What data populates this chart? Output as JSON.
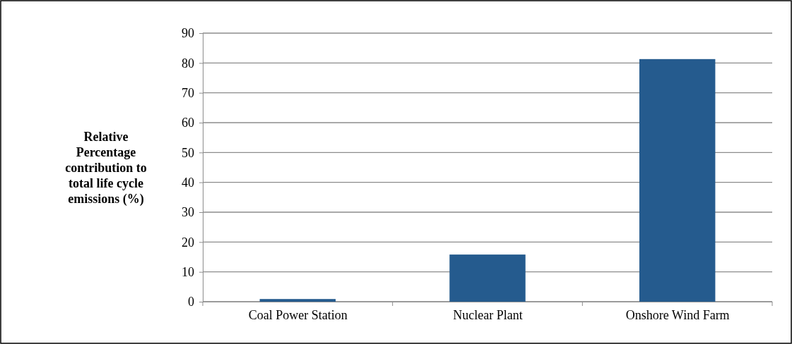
{
  "chart_data": {
    "type": "bar",
    "ylabel": "Relative Percentage contribution to total life cycle emissions (%)",
    "categories": [
      "Coal Power Station",
      "Nuclear Plant",
      "Onshore Wind Farm"
    ],
    "values": [
      0.9,
      15.8,
      81.3
    ],
    "color": "#255b8e",
    "ylim": [
      0,
      90
    ],
    "yticks": [
      0,
      10,
      20,
      30,
      40,
      50,
      60,
      70,
      80,
      90
    ],
    "grid": "y"
  }
}
